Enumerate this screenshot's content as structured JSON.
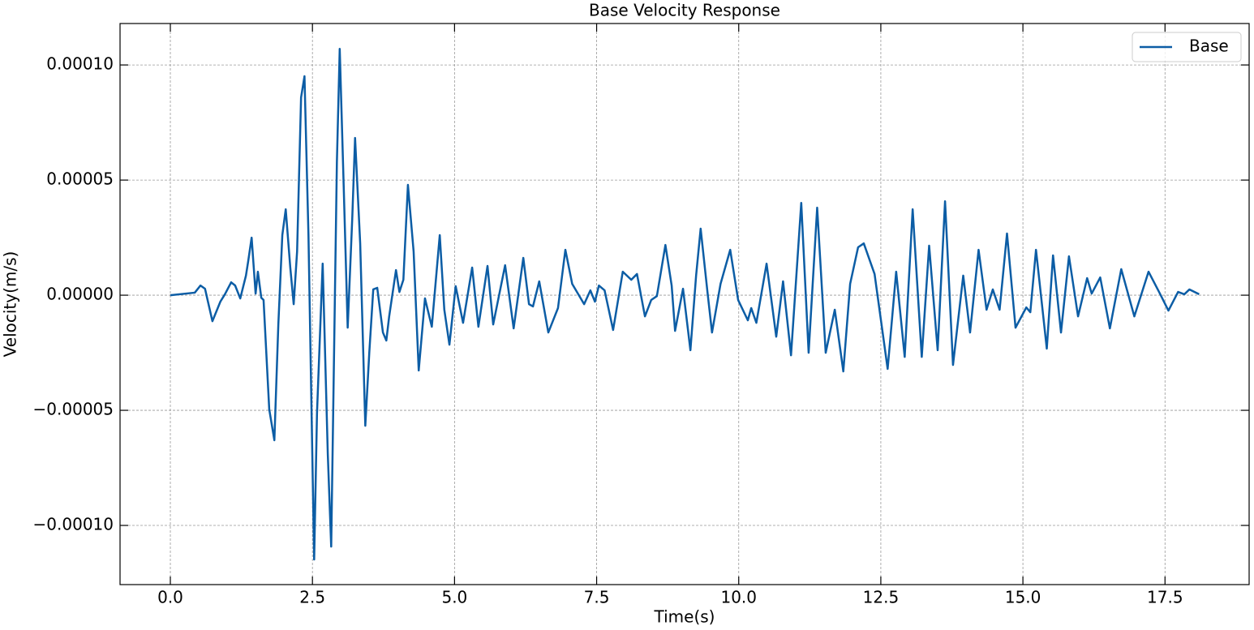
{
  "chart_data": {
    "type": "line",
    "title": "Base Velocity Response",
    "x_label": "Time(s)",
    "y_label": "Velocity(m/s)",
    "x": [
      0,
      0.43,
      0.53,
      0.61,
      0.74,
      0.88,
      0.96,
      1.07,
      1.14,
      1.23,
      1.33,
      1.37,
      1.43,
      1.5,
      1.54,
      1.6,
      1.64,
      1.74,
      1.83,
      1.9,
      1.97,
      2.03,
      2.11,
      2.17,
      2.23,
      2.3,
      2.36,
      2.43,
      2.53,
      2.58,
      2.68,
      2.77,
      2.83,
      2.93,
      2.98,
      3.05,
      3.12,
      3.2,
      3.25,
      3.34,
      3.43,
      3.5,
      3.57,
      3.64,
      3.74,
      3.8,
      3.85,
      3.97,
      4.03,
      4.1,
      4.18,
      4.28,
      4.37,
      4.48,
      4.6,
      4.74,
      4.82,
      4.91,
      5.02,
      5.15,
      5.31,
      5.42,
      5.58,
      5.68,
      5.89,
      6.04,
      6.21,
      6.31,
      6.38,
      6.49,
      6.65,
      6.82,
      6.95,
      7.07,
      7.28,
      7.39,
      7.47,
      7.54,
      7.64,
      7.79,
      7.96,
      8.11,
      8.21,
      8.35,
      8.46,
      8.56,
      8.71,
      8.82,
      8.88,
      9.02,
      9.15,
      9.25,
      9.33,
      9.45,
      9.53,
      9.68,
      9.85,
      9.99,
      10.16,
      10.22,
      10.31,
      10.49,
      10.66,
      10.78,
      10.92,
      11.1,
      11.23,
      11.38,
      11.53,
      11.69,
      11.84,
      11.96,
      12.1,
      12.2,
      12.39,
      12.62,
      12.77,
      12.92,
      13.06,
      13.22,
      13.35,
      13.5,
      13.63,
      13.77,
      13.95,
      14.07,
      14.22,
      14.36,
      14.47,
      14.59,
      14.72,
      14.87,
      15.06,
      15.13,
      15.23,
      15.42,
      15.53,
      15.67,
      15.81,
      15.97,
      16.13,
      16.21,
      16.36,
      16.53,
      16.73,
      16.96,
      17.21,
      17.41,
      17.56,
      17.73,
      17.84,
      17.93,
      18.1
    ],
    "series": [
      {
        "name": "Base",
        "color": "#0c5da5",
        "values": [
          0,
          1.1e-06,
          4.2e-06,
          2.8e-06,
          -1.13e-05,
          -2.8e-06,
          4e-07,
          5.6e-06,
          4.2e-06,
          -1.4e-06,
          8.5e-06,
          1.48e-05,
          2.5e-05,
          7e-07,
          1.02e-05,
          -1.1e-06,
          -2.1e-06,
          -4.96e-05,
          -6.3e-05,
          -1.27e-05,
          2.61e-05,
          3.73e-05,
          1.2e-05,
          -3.9e-06,
          1.9e-05,
          8.59e-05,
          9.51e-05,
          2.61e-05,
          -0.0001148,
          -5.14e-05,
          1.37e-05,
          -6.9e-05,
          -0.0001092,
          5.77e-05,
          0.000107,
          4.72e-05,
          -1.41e-05,
          3.31e-05,
          6.83e-05,
          2.25e-05,
          -5.67e-05,
          -2.5e-05,
          2.5e-06,
          3.2e-06,
          -1.62e-05,
          -1.97e-05,
          -9.2e-06,
          1.09e-05,
          1.4e-06,
          6.7e-06,
          4.79e-05,
          1.9e-05,
          -3.27e-05,
          -1.4e-06,
          -1.37e-05,
          2.61e-05,
          -6.3e-06,
          -2.15e-05,
          3.9e-06,
          -1.2e-05,
          1.2e-05,
          -1.37e-05,
          1.27e-05,
          -1.27e-05,
          1.3e-05,
          -1.44e-05,
          1.62e-05,
          -3.9e-06,
          -4.9e-06,
          6e-06,
          -1.62e-05,
          -5.6e-06,
          1.97e-05,
          4.9e-06,
          -3.9e-06,
          2.1e-06,
          -2.8e-06,
          4.2e-06,
          2.1e-06,
          -1.51e-05,
          1.02e-05,
          6.7e-06,
          9.2e-06,
          -9.2e-06,
          -2.1e-06,
          -4e-07,
          2.18e-05,
          4.2e-06,
          -1.55e-05,
          2.8e-06,
          -2.39e-05,
          8.5e-06,
          2.89e-05,
          1.4e-06,
          -1.62e-05,
          4.9e-06,
          1.97e-05,
          -2.1e-06,
          -1.09e-05,
          -5.6e-06,
          -1.2e-05,
          1.37e-05,
          -1.8e-05,
          6e-06,
          -2.61e-05,
          4.01e-05,
          -2.5e-05,
          3.8e-05,
          -2.5e-05,
          -6.3e-06,
          -3.31e-05,
          4.9e-06,
          2.08e-05,
          2.25e-05,
          9.2e-06,
          -3.2e-05,
          1.02e-05,
          -2.68e-05,
          3.73e-05,
          -2.68e-05,
          2.15e-05,
          -2.39e-05,
          4.08e-05,
          -3.03e-05,
          8.5e-06,
          -1.62e-05,
          1.97e-05,
          -6.3e-06,
          2.5e-06,
          -6.3e-06,
          2.68e-05,
          -1.41e-05,
          -5.3e-06,
          -7.4e-06,
          1.97e-05,
          -2.32e-05,
          1.73e-05,
          -1.62e-05,
          1.69e-05,
          -9.2e-06,
          7.4e-06,
          7e-07,
          7.7e-06,
          -1.44e-05,
          1.13e-05,
          -9.2e-06,
          1.02e-05,
          7e-07,
          -6.7e-06,
          1.4e-06,
          4e-07,
          2.5e-06,
          4e-07
        ]
      }
    ],
    "xlim": [
      -0.885,
      18.98
    ],
    "ylim": [
      -0.0001257,
      0.000118
    ],
    "xticks": [
      {
        "value": 0,
        "label": "0.0"
      },
      2.5,
      {
        "value": 5,
        "label": "5.0"
      },
      7.5,
      {
        "value": 10,
        "label": "10.0"
      },
      12.5,
      {
        "value": 15,
        "label": "15.0"
      },
      17.5
    ],
    "yticks": [
      {
        "value": -0.0001,
        "label": "−0.00010"
      },
      {
        "value": -5e-05,
        "label": "−0.00005"
      },
      {
        "value": 0,
        "label": "0.00000"
      },
      {
        "value": 5e-05,
        "label": "0.00005"
      },
      {
        "value": 0.0001,
        "label": "0.00010"
      }
    ],
    "grid": true,
    "legend": "upper right"
  }
}
